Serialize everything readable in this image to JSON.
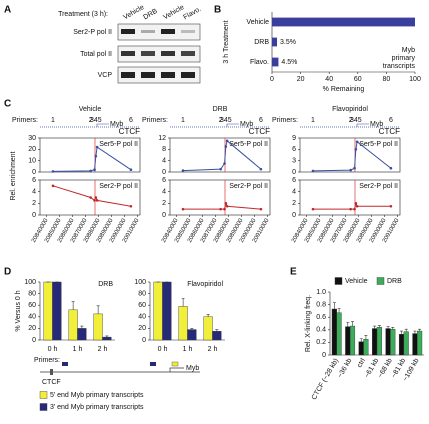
{
  "panel_labels": [
    "A",
    "B",
    "C",
    "D",
    "E"
  ],
  "blot": {
    "treatment_label": "Treatment (3 h):",
    "lanes": [
      "Vehicle",
      "DRB",
      "Vehicle",
      "Flavo."
    ],
    "rows": [
      "Ser2-P pol II",
      "Total pol II",
      "VCP"
    ]
  },
  "primers": {
    "title": "Primers:",
    "labels": [
      "1",
      "2",
      "345",
      "6"
    ],
    "gene": "Myb",
    "site": "CTCF"
  },
  "chart_data": [
    {
      "type": "bar",
      "orientation": "horizontal",
      "categories": [
        "Vehicle",
        "DRB",
        "Flavo."
      ],
      "values": [
        100,
        3.5,
        4.5
      ],
      "value_labels": [
        null,
        "3.5%",
        "4.5%"
      ],
      "color": "#3a3f9e",
      "xlim": [
        0,
        100
      ],
      "xticks": [
        0,
        20,
        40,
        60,
        80,
        100
      ],
      "x_label": "% Remaining",
      "y_label": "3 h Treatment",
      "annotation": [
        "Myb",
        "primary",
        "transcripts"
      ]
    },
    {
      "type": "line",
      "title": "Vehicle",
      "y_label": "Rel. enrichment",
      "x": [
        20845000,
        20874000,
        20877000,
        20878000,
        20879000,
        20905000
      ],
      "xlim": [
        20835000,
        20912000
      ],
      "xticks": [
        20840000,
        20850000,
        20860000,
        20870000,
        20880000,
        20890000,
        20900000,
        20910000
      ],
      "series": [
        {
          "name": "Ser5-P pol II",
          "color": "#3a4fa0",
          "values": [
            0.5,
            1,
            2,
            14,
            22,
            2
          ],
          "ylim": [
            0,
            30
          ],
          "yticks": [
            0,
            10,
            20,
            30
          ]
        },
        {
          "name": "Ser2-P pol II",
          "color": "#c0282a",
          "values": [
            5,
            3,
            2.5,
            3,
            2.5,
            1.5
          ],
          "ylim": [
            0,
            6
          ],
          "yticks": [
            0,
            2,
            4,
            6
          ]
        }
      ]
    },
    {
      "type": "line",
      "title": "DRB",
      "x": [
        20845000,
        20874000,
        20877000,
        20878000,
        20879000,
        20905000
      ],
      "xlim": [
        20835000,
        20912000
      ],
      "xticks": [
        20840000,
        20850000,
        20860000,
        20870000,
        20880000,
        20890000,
        20900000,
        20910000
      ],
      "series": [
        {
          "name": "Ser5-P pol II",
          "color": "#3a4fa0",
          "values": [
            0.5,
            1,
            3,
            9,
            11,
            1
          ],
          "ylim": [
            0,
            12
          ],
          "yticks": [
            0,
            4,
            8,
            12
          ]
        },
        {
          "name": "Ser2-P pol II",
          "color": "#c0282a",
          "values": [
            1,
            1,
            1,
            2,
            1.5,
            1
          ],
          "ylim": [
            0,
            6
          ],
          "yticks": [
            0,
            2,
            4,
            6
          ]
        }
      ]
    },
    {
      "type": "line",
      "title": "Flavopiridol",
      "x": [
        20845000,
        20874000,
        20877000,
        20878000,
        20879000,
        20905000
      ],
      "xlim": [
        20835000,
        20912000
      ],
      "xticks": [
        20840000,
        20850000,
        20860000,
        20870000,
        20880000,
        20890000,
        20900000,
        20910000
      ],
      "series": [
        {
          "name": "Ser5-P pol II",
          "color": "#3a4fa0",
          "values": [
            0.3,
            0.5,
            1,
            6,
            8,
            1
          ],
          "ylim": [
            0,
            9
          ],
          "yticks": [
            0,
            3,
            6,
            9
          ]
        },
        {
          "name": "Ser2-P pol II",
          "color": "#c0282a",
          "values": [
            1,
            1,
            1,
            2,
            1.5,
            1.5
          ],
          "ylim": [
            0,
            6
          ],
          "yticks": [
            0,
            2,
            4,
            6
          ]
        }
      ]
    },
    {
      "type": "bar",
      "title": "DRB",
      "y_label": "% Versus 0 h",
      "categories": [
        "0 h",
        "1 h",
        "2 h"
      ],
      "ylim": [
        0,
        100
      ],
      "yticks": [
        0,
        20,
        40,
        60,
        80,
        100
      ],
      "series": [
        {
          "name": "5′ end Myb primary transcripts",
          "color": "#f2ef3a",
          "values": [
            100,
            52,
            45
          ],
          "errors": [
            0,
            14,
            14
          ]
        },
        {
          "name": "3′ end Myb primary transcripts",
          "color": "#262a78",
          "values": [
            100,
            20,
            5
          ],
          "errors": [
            0,
            4,
            2
          ]
        }
      ]
    },
    {
      "type": "bar",
      "title": "Flavopiridol",
      "categories": [
        "0 h",
        "1 h",
        "2 h"
      ],
      "ylim": [
        0,
        100
      ],
      "yticks": [
        0,
        20,
        40,
        60,
        80,
        100
      ],
      "series": [
        {
          "color": "#f2ef3a",
          "values": [
            100,
            58,
            40
          ],
          "errors": [
            0,
            14,
            4
          ]
        },
        {
          "color": "#262a78",
          "values": [
            100,
            18,
            15
          ],
          "errors": [
            0,
            2,
            3
          ]
        }
      ]
    },
    {
      "type": "bar",
      "y_label": "Rel. X-linking freq.",
      "legend": "top",
      "categories": [
        "CTCF (−28 kb)",
        "−36 kb",
        "ctrl",
        "−61 kb",
        "−68 kb",
        "−81 kb",
        "−109 kb"
      ],
      "ylim": [
        0,
        1
      ],
      "yticks": [
        0,
        0.2,
        0.4,
        0.6,
        0.8,
        {
          "value": 1,
          "label": "1.0"
        }
      ],
      "series": [
        {
          "name": "Vehicle",
          "color": "#111111",
          "values": [
            0.73,
            0.45,
            0.21,
            0.42,
            0.42,
            0.33,
            0.34
          ],
          "errors": [
            0.1,
            0.07,
            0.05,
            0.04,
            0.03,
            0.05,
            0.04
          ]
        },
        {
          "name": "DRB",
          "color": "#3cae5a",
          "values": [
            0.67,
            0.46,
            0.25,
            0.44,
            0.41,
            0.37,
            0.38
          ],
          "errors": [
            0.07,
            0.07,
            0.06,
            0.03,
            0.03,
            0.04,
            0.03
          ]
        }
      ]
    }
  ]
}
